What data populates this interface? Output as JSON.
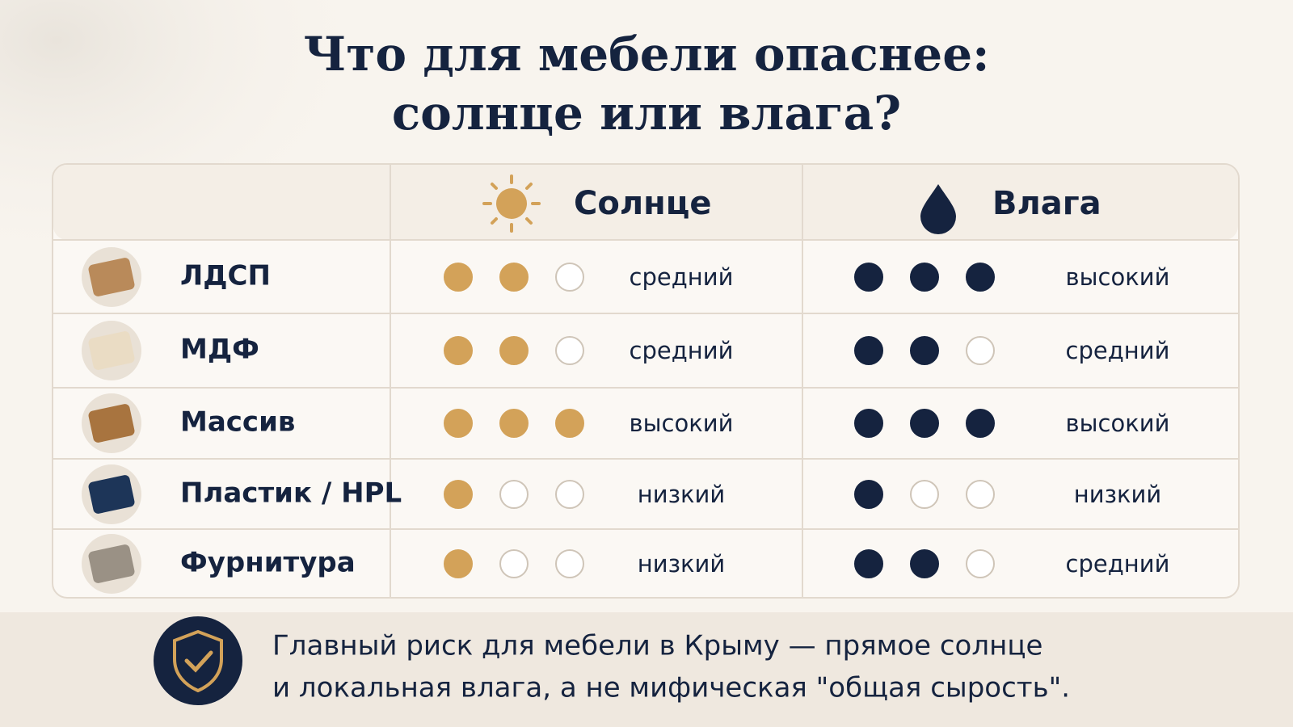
{
  "title_lines": [
    "Что для мебели опаснее:",
    "солнце или влага?"
  ],
  "table": {
    "columns": [
      "Солнце",
      "Влага"
    ],
    "scale_max": 3,
    "colors": {
      "sun": "#d3a259",
      "moisture": "#15233f"
    },
    "rows": [
      {
        "material": "ЛДСП",
        "sun": {
          "level": 2,
          "label": "средний"
        },
        "moisture": {
          "level": 3,
          "label": "высокий"
        }
      },
      {
        "material": "МДФ",
        "sun": {
          "level": 2,
          "label": "средний"
        },
        "moisture": {
          "level": 2,
          "label": "средний"
        }
      },
      {
        "material": "Массив",
        "sun": {
          "level": 3,
          "label": "высокий"
        },
        "moisture": {
          "level": 3,
          "label": "высокий"
        }
      },
      {
        "material": "Пластик / HPL",
        "sun": {
          "level": 1,
          "label": "низкий"
        },
        "moisture": {
          "level": 1,
          "label": "низкий"
        }
      },
      {
        "material": "Фурнитура",
        "sun": {
          "level": 1,
          "label": "низкий"
        },
        "moisture": {
          "level": 2,
          "label": "средний"
        }
      }
    ]
  },
  "footer": {
    "lines": [
      "Главный риск для мебели в Крыму — прямое солнце",
      "и локальная влага, а не мифическая \"общая сырость\"."
    ]
  }
}
